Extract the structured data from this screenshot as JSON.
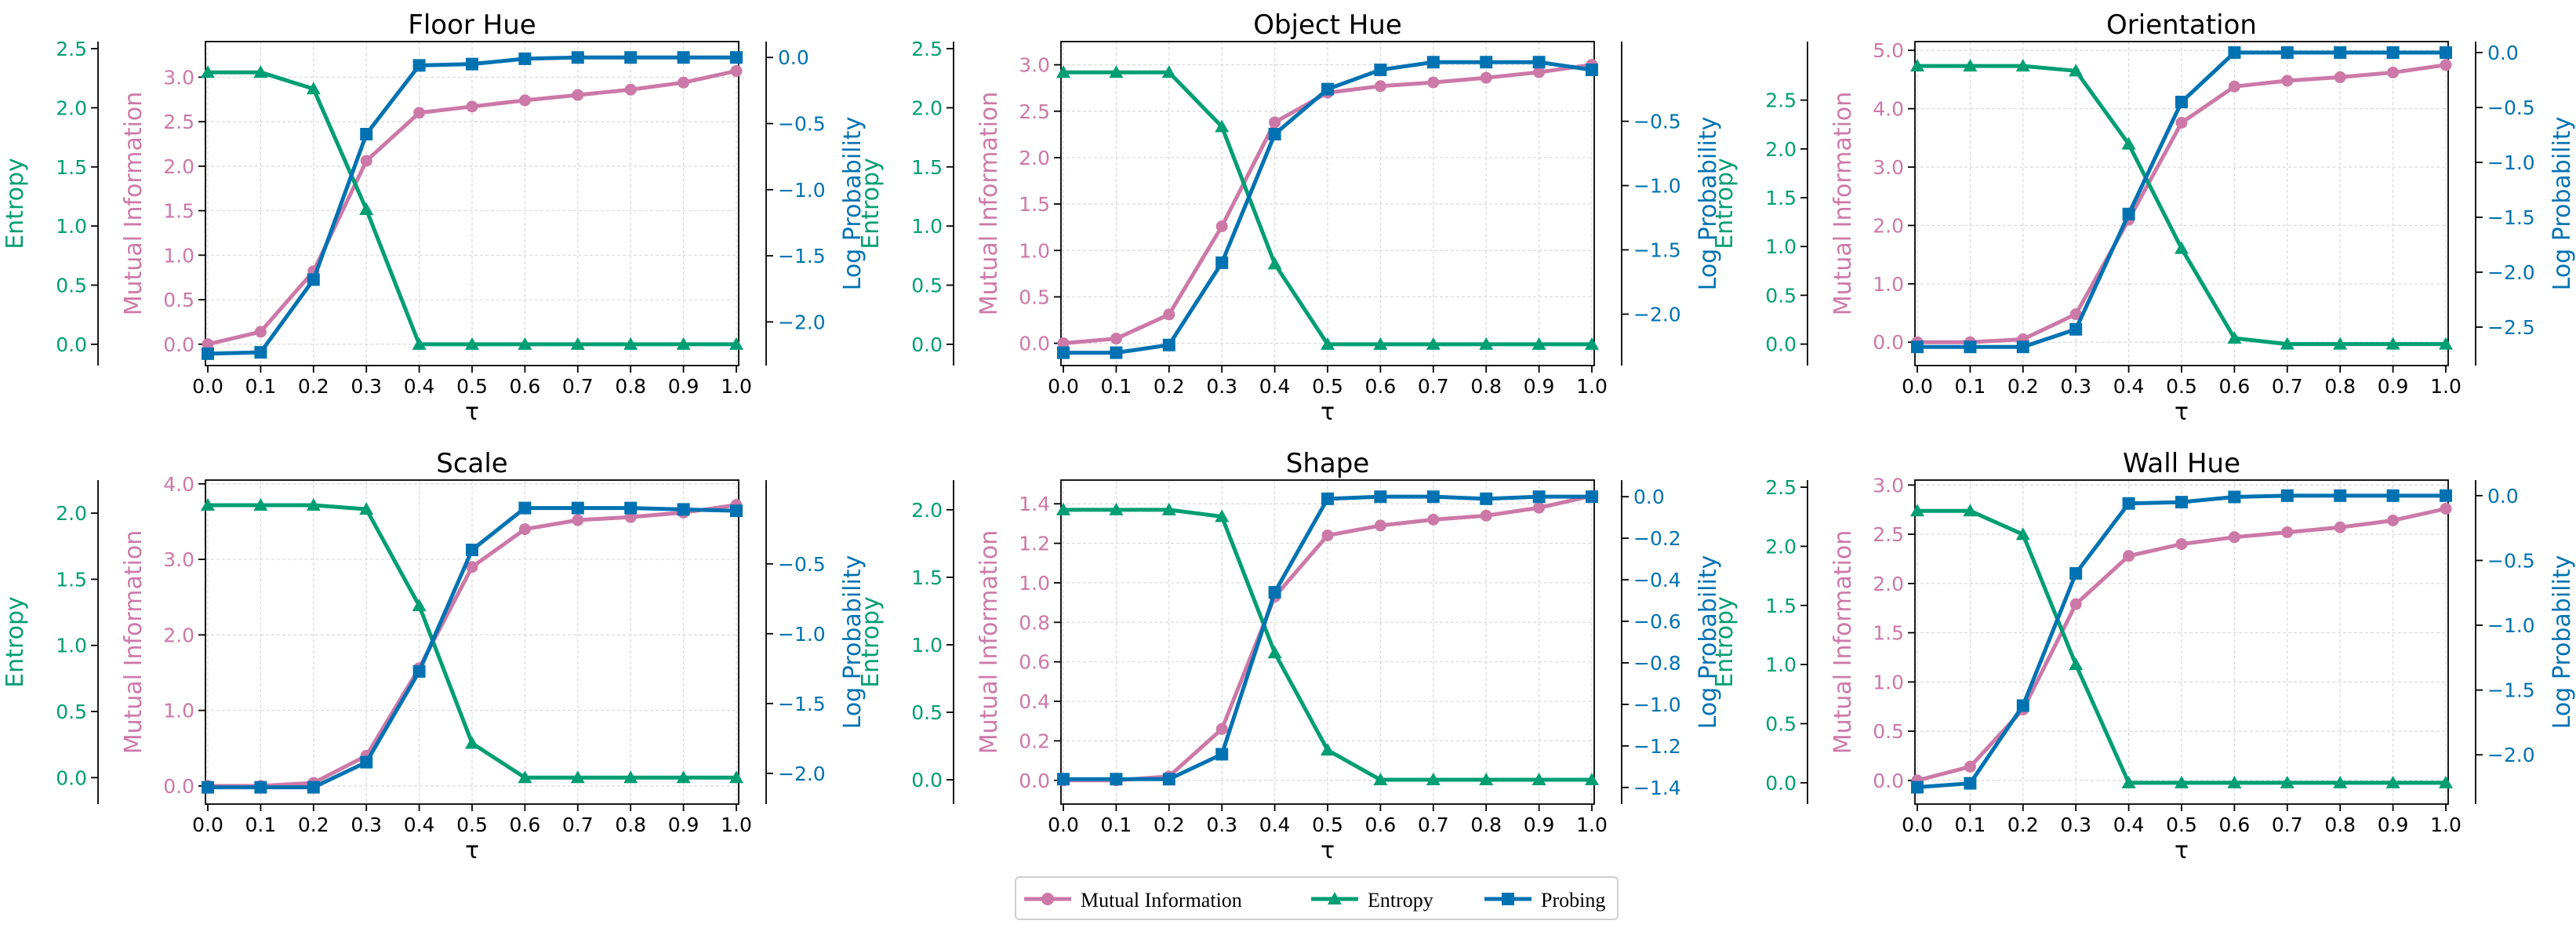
{
  "colors": {
    "mi": "#CC79A7",
    "entropy": "#009E73",
    "probing": "#0072B2",
    "grid": "#d9d9d9",
    "axis": "#000000"
  },
  "legend": [
    {
      "label": "Mutual Information",
      "marker": "circle",
      "color": "#CC79A7"
    },
    {
      "label": "Entropy",
      "marker": "triangle",
      "color": "#009E73"
    },
    {
      "label": "Probing",
      "marker": "square",
      "color": "#0072B2"
    }
  ],
  "chart_data": [
    {
      "type": "line",
      "title": "Floor Hue",
      "xlabel": "τ",
      "x": [
        0.0,
        0.1,
        0.2,
        0.3,
        0.4,
        0.5,
        0.6,
        0.7,
        0.8,
        0.9,
        1.0
      ],
      "x_ticks": [
        "0.0",
        "0.1",
        "0.2",
        "0.3",
        "0.4",
        "0.5",
        "0.6",
        "0.7",
        "0.8",
        "0.9",
        "1.0"
      ],
      "mi": {
        "ylabel": "Mutual Information",
        "ylim": [
          -0.24,
          3.4
        ],
        "ticks": [
          0.0,
          0.5,
          1.0,
          1.5,
          2.0,
          2.5,
          3.0
        ],
        "tick_labels": [
          "0.0",
          "0.5",
          "1.0",
          "1.5",
          "2.0",
          "2.5",
          "3.0"
        ],
        "values": [
          0.0,
          0.14,
          0.82,
          2.06,
          2.6,
          2.67,
          2.74,
          2.8,
          2.86,
          2.94,
          3.07
        ]
      },
      "entropy": {
        "ylabel": "Entropy",
        "ylim": [
          -0.18,
          2.56
        ],
        "ticks": [
          0.0,
          0.5,
          1.0,
          1.5,
          2.0,
          2.5
        ],
        "tick_labels": [
          "0.0",
          "0.5",
          "1.0",
          "1.5",
          "2.0",
          "2.5"
        ],
        "values": [
          2.3,
          2.3,
          2.16,
          1.14,
          0.0,
          0.0,
          0.0,
          0.0,
          0.0,
          0.0,
          0.0
        ]
      },
      "probing": {
        "ylabel": "Log Probability",
        "ylim": [
          -2.33,
          0.12
        ],
        "ticks": [
          0.0,
          -0.5,
          -1.0,
          -1.5,
          -2.0
        ],
        "tick_labels": [
          "0.0",
          "−0.5",
          "−1.0",
          "−1.5",
          "−2.0"
        ],
        "values": [
          -2.24,
          -2.23,
          -1.68,
          -0.58,
          -0.06,
          -0.05,
          -0.01,
          0.0,
          0.0,
          0.0,
          0.0
        ]
      }
    },
    {
      "type": "line",
      "title": "Object Hue",
      "xlabel": "τ",
      "x": [
        0.0,
        0.1,
        0.2,
        0.3,
        0.4,
        0.5,
        0.6,
        0.7,
        0.8,
        0.9,
        1.0
      ],
      "x_ticks": [
        "0.0",
        "0.1",
        "0.2",
        "0.3",
        "0.4",
        "0.5",
        "0.6",
        "0.7",
        "0.8",
        "0.9",
        "1.0"
      ],
      "mi": {
        "ylabel": "Mutual Information",
        "ylim": [
          -0.24,
          3.25
        ],
        "ticks": [
          0.0,
          0.5,
          1.0,
          1.5,
          2.0,
          2.5,
          3.0
        ],
        "tick_labels": [
          "0.0",
          "0.5",
          "1.0",
          "1.5",
          "2.0",
          "2.5",
          "3.0"
        ],
        "values": [
          0.0,
          0.05,
          0.31,
          1.26,
          2.38,
          2.7,
          2.77,
          2.81,
          2.86,
          2.92,
          3.0
        ]
      },
      "entropy": {
        "ylabel": "Entropy",
        "ylim": [
          -0.18,
          2.56
        ],
        "ticks": [
          0.0,
          0.5,
          1.0,
          1.5,
          2.0,
          2.5
        ],
        "tick_labels": [
          "0.0",
          "0.5",
          "1.0",
          "1.5",
          "2.0",
          "2.5"
        ],
        "values": [
          2.3,
          2.3,
          2.3,
          1.84,
          0.68,
          0.0,
          0.0,
          0.0,
          0.0,
          0.0,
          0.0
        ]
      },
      "probing": {
        "ylabel": "Log Probability",
        "ylim": [
          -2.4,
          0.12
        ],
        "ticks": [
          -0.5,
          -1.0,
          -1.5,
          -2.0
        ],
        "tick_labels": [
          "−0.5",
          "−1.0",
          "−1.5",
          "−2.0"
        ],
        "values": [
          -2.3,
          -2.3,
          -2.24,
          -1.6,
          -0.6,
          -0.25,
          -0.1,
          -0.04,
          -0.04,
          -0.04,
          -0.1
        ]
      }
    },
    {
      "type": "line",
      "title": "Orientation",
      "xlabel": "τ",
      "x": [
        0.0,
        0.1,
        0.2,
        0.3,
        0.4,
        0.5,
        0.6,
        0.7,
        0.8,
        0.9,
        1.0
      ],
      "x_ticks": [
        "0.0",
        "0.1",
        "0.2",
        "0.3",
        "0.4",
        "0.5",
        "0.6",
        "0.7",
        "0.8",
        "0.9",
        "1.0"
      ],
      "mi": {
        "ylabel": "Mutual Information",
        "ylim": [
          -0.4,
          5.15
        ],
        "ticks": [
          0.0,
          1.0,
          2.0,
          3.0,
          4.0,
          5.0
        ],
        "tick_labels": [
          "0.0",
          "1.0",
          "2.0",
          "3.0",
          "4.0",
          "5.0"
        ],
        "values": [
          0.0,
          0.0,
          0.05,
          0.48,
          2.1,
          3.76,
          4.38,
          4.48,
          4.54,
          4.62,
          4.75
        ]
      },
      "entropy": {
        "ylabel": "Entropy",
        "ylim": [
          -0.22,
          3.1
        ],
        "ticks": [
          0.0,
          0.5,
          1.0,
          1.5,
          2.0,
          2.5
        ],
        "tick_labels": [
          "0.0",
          "0.5",
          "1.0",
          "1.5",
          "2.0",
          "2.5"
        ],
        "values": [
          2.85,
          2.85,
          2.85,
          2.8,
          2.05,
          0.98,
          0.06,
          0.0,
          0.0,
          0.0,
          0.0
        ]
      },
      "probing": {
        "ylabel": "Log Probability",
        "ylim": [
          -2.85,
          0.1
        ],
        "ticks": [
          0.0,
          -0.5,
          -1.0,
          -1.5,
          -2.0,
          -2.5
        ],
        "tick_labels": [
          "0.0",
          "−0.5",
          "−1.0",
          "−1.5",
          "−2.0",
          "−2.5"
        ],
        "values": [
          -2.68,
          -2.68,
          -2.68,
          -2.52,
          -1.47,
          -0.45,
          0.0,
          0.0,
          0.0,
          0.0,
          0.0
        ]
      }
    },
    {
      "type": "line",
      "title": "Scale",
      "xlabel": "τ",
      "x": [
        0.0,
        0.1,
        0.2,
        0.3,
        0.4,
        0.5,
        0.6,
        0.7,
        0.8,
        0.9,
        1.0
      ],
      "x_ticks": [
        "0.0",
        "0.1",
        "0.2",
        "0.3",
        "0.4",
        "0.5",
        "0.6",
        "0.7",
        "0.8",
        "0.9",
        "1.0"
      ],
      "mi": {
        "ylabel": "Mutual Information",
        "ylim": [
          -0.24,
          4.05
        ],
        "ticks": [
          0.0,
          1.0,
          2.0,
          3.0,
          4.0
        ],
        "tick_labels": [
          "0.0",
          "1.0",
          "2.0",
          "3.0",
          "4.0"
        ],
        "values": [
          0.0,
          0.0,
          0.04,
          0.4,
          1.56,
          2.9,
          3.4,
          3.52,
          3.56,
          3.62,
          3.72
        ]
      },
      "entropy": {
        "ylabel": "Entropy",
        "ylim": [
          -0.2,
          2.25
        ],
        "ticks": [
          0.0,
          0.5,
          1.0,
          1.5,
          2.0
        ],
        "tick_labels": [
          "0.0",
          "0.5",
          "1.0",
          "1.5",
          "2.0"
        ],
        "values": [
          2.06,
          2.06,
          2.06,
          2.03,
          1.3,
          0.26,
          0.0,
          0.0,
          0.0,
          0.0,
          0.0
        ]
      },
      "probing": {
        "ylabel": "Log Probability",
        "ylim": [
          -2.22,
          0.1
        ],
        "ticks": [
          -0.5,
          -1.0,
          -1.5,
          -2.0
        ],
        "tick_labels": [
          "−0.5",
          "−1.0",
          "−1.5",
          "−2.0"
        ],
        "values": [
          -2.1,
          -2.1,
          -2.1,
          -1.92,
          -1.27,
          -0.4,
          -0.1,
          -0.1,
          -0.1,
          -0.11,
          -0.12
        ]
      }
    },
    {
      "type": "line",
      "title": "Shape",
      "xlabel": "τ",
      "x": [
        0.0,
        0.1,
        0.2,
        0.3,
        0.4,
        0.5,
        0.6,
        0.7,
        0.8,
        0.9,
        1.0
      ],
      "x_ticks": [
        "0.0",
        "0.1",
        "0.2",
        "0.3",
        "0.4",
        "0.5",
        "0.6",
        "0.7",
        "0.8",
        "0.9",
        "1.0"
      ],
      "mi": {
        "ylabel": "Mutual Information",
        "ylim": [
          -0.12,
          1.52
        ],
        "ticks": [
          0.0,
          0.2,
          0.4,
          0.6,
          0.8,
          1.0,
          1.2,
          1.4
        ],
        "tick_labels": [
          "0.0",
          "0.2",
          "0.4",
          "0.6",
          "0.8",
          "1.0",
          "1.2",
          "1.4"
        ],
        "values": [
          0.0,
          0.0,
          0.02,
          0.26,
          0.93,
          1.24,
          1.29,
          1.32,
          1.34,
          1.38,
          1.44
        ]
      },
      "entropy": {
        "ylabel": "Entropy",
        "ylim": [
          -0.18,
          2.22
        ],
        "ticks": [
          0.0,
          0.5,
          1.0,
          1.5,
          2.0
        ],
        "tick_labels": [
          "0.0",
          "0.5",
          "1.0",
          "1.5",
          "2.0"
        ],
        "values": [
          2.0,
          2.0,
          2.0,
          1.95,
          0.94,
          0.22,
          0.0,
          0.0,
          0.0,
          0.0,
          0.0
        ]
      },
      "probing": {
        "ylabel": "Log Probability",
        "ylim": [
          -1.48,
          0.08
        ],
        "ticks": [
          0.0,
          -0.2,
          -0.4,
          -0.6,
          -0.8,
          -1.0,
          -1.2,
          -1.4
        ],
        "tick_labels": [
          "0.0",
          "−0.2",
          "−0.4",
          "−0.6",
          "−0.8",
          "−1.0",
          "−1.2",
          "−1.4"
        ],
        "values": [
          -1.36,
          -1.36,
          -1.36,
          -1.24,
          -0.46,
          -0.01,
          0.0,
          0.0,
          -0.01,
          0.0,
          0.0
        ]
      }
    },
    {
      "type": "line",
      "title": "Wall Hue",
      "xlabel": "τ",
      "x": [
        0.0,
        0.1,
        0.2,
        0.3,
        0.4,
        0.5,
        0.6,
        0.7,
        0.8,
        0.9,
        1.0
      ],
      "x_ticks": [
        "0.0",
        "0.1",
        "0.2",
        "0.3",
        "0.4",
        "0.5",
        "0.6",
        "0.7",
        "0.8",
        "0.9",
        "1.0"
      ],
      "mi": {
        "ylabel": "Mutual Information",
        "ylim": [
          -0.24,
          3.05
        ],
        "ticks": [
          0.0,
          0.5,
          1.0,
          1.5,
          2.0,
          2.5,
          3.0
        ],
        "tick_labels": [
          "0.0",
          "0.5",
          "1.0",
          "1.5",
          "2.0",
          "2.5",
          "3.0"
        ],
        "values": [
          0.0,
          0.14,
          0.72,
          1.79,
          2.28,
          2.4,
          2.47,
          2.52,
          2.57,
          2.64,
          2.76
        ]
      },
      "entropy": {
        "ylabel": "Entropy",
        "ylim": [
          -0.18,
          2.56
        ],
        "ticks": [
          0.0,
          0.5,
          1.0,
          1.5,
          2.0,
          2.5
        ],
        "tick_labels": [
          "0.0",
          "0.5",
          "1.0",
          "1.5",
          "2.0",
          "2.5"
        ],
        "values": [
          2.3,
          2.3,
          2.1,
          1.0,
          0.0,
          0.0,
          0.0,
          0.0,
          0.0,
          0.0,
          0.0
        ]
      },
      "probing": {
        "ylabel": "Log Probability",
        "ylim": [
          -2.38,
          0.12
        ],
        "ticks": [
          0.0,
          -0.5,
          -1.0,
          -1.5,
          -2.0
        ],
        "tick_labels": [
          "0.0",
          "−0.5",
          "−1.0",
          "−1.5",
          "−2.0"
        ],
        "values": [
          -2.25,
          -2.22,
          -1.62,
          -0.6,
          -0.06,
          -0.05,
          -0.01,
          0.0,
          0.0,
          0.0,
          0.0
        ]
      }
    }
  ]
}
